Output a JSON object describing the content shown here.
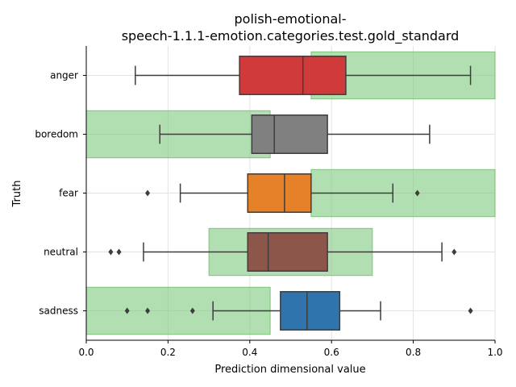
{
  "chart_data": {
    "type": "boxplot",
    "title_lines": [
      "polish-emotional-",
      "speech-1.1.1-emotion.categories.test.gold_standard"
    ],
    "xlabel": "Prediction dimensional value",
    "ylabel": "Truth",
    "xlim": [
      0.0,
      1.0
    ],
    "xticks": [
      "0.0",
      "0.2",
      "0.4",
      "0.6",
      "0.8",
      "1.0"
    ],
    "grid": true,
    "categories": [
      {
        "label": "anger",
        "color": "#d03a3a",
        "whisker_low": 0.12,
        "q1": 0.375,
        "median": 0.53,
        "q3": 0.635,
        "whisker_high": 0.94,
        "outliers": [],
        "gold_range": [
          0.55,
          1.0
        ]
      },
      {
        "label": "boredom",
        "color": "#808080",
        "whisker_low": 0.18,
        "q1": 0.405,
        "median": 0.46,
        "q3": 0.59,
        "whisker_high": 0.84,
        "outliers": [],
        "gold_range": [
          0.0,
          0.45
        ]
      },
      {
        "label": "fear",
        "color": "#e58128",
        "whisker_low": 0.23,
        "q1": 0.395,
        "median": 0.485,
        "q3": 0.55,
        "whisker_high": 0.75,
        "outliers": [
          0.15,
          0.81
        ],
        "gold_range": [
          0.55,
          1.0
        ]
      },
      {
        "label": "neutral",
        "color": "#8c564b",
        "whisker_low": 0.14,
        "q1": 0.395,
        "median": 0.445,
        "q3": 0.59,
        "whisker_high": 0.87,
        "outliers": [
          0.06,
          0.08,
          0.9
        ],
        "gold_range": [
          0.3,
          0.7
        ]
      },
      {
        "label": "sadness",
        "color": "#2f74ad",
        "whisker_low": 0.31,
        "q1": 0.475,
        "median": 0.54,
        "q3": 0.62,
        "whisker_high": 0.72,
        "outliers": [
          0.1,
          0.15,
          0.26,
          0.94
        ],
        "gold_range": [
          0.0,
          0.45
        ]
      }
    ],
    "gold_band_color": "#7fc97f"
  }
}
